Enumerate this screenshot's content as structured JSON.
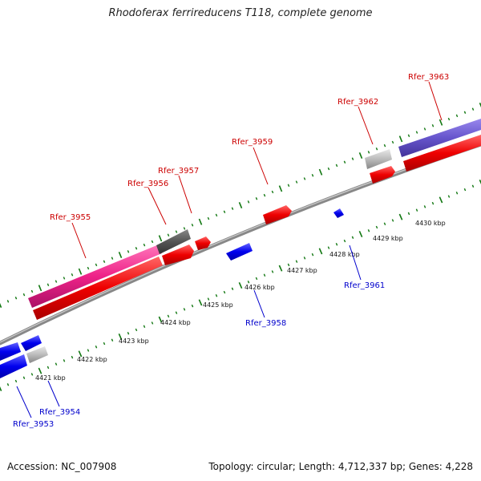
{
  "title": "Rhodoferax ferrireducens T118, complete genome",
  "footer": {
    "accession": "Accession: NC_007908",
    "stats": "Topology: circular; Length: 4,712,337 bp; Genes: 4,228"
  },
  "colors": {
    "forward_label": "#cc0000",
    "reverse_label": "#0000cc",
    "forward_gene": "#ee0000",
    "reverse_gene": "#0000ee",
    "pink_gene": "#ee2288",
    "purple_gene": "#6655cc",
    "gray_gene": "#bbbbbb",
    "darkgray_gene": "#555555",
    "backbone": "#888888",
    "tick": "#117711"
  },
  "scale": {
    "labels": [
      "4421 kbp",
      "4422 kbp",
      "4423 kbp",
      "4424 kbp",
      "4425 kbp",
      "4426 kbp",
      "4427 kbp",
      "4428 kbp",
      "4429 kbp",
      "4430 kbp"
    ]
  },
  "forward_labels": [
    "Rfer_3955",
    "Rfer_3956",
    "Rfer_3957",
    "Rfer_3959",
    "Rfer_3962",
    "Rfer_3963"
  ],
  "reverse_labels": [
    "Rfer_3953",
    "Rfer_3954",
    "Rfer_3958",
    "Rfer_3961"
  ]
}
